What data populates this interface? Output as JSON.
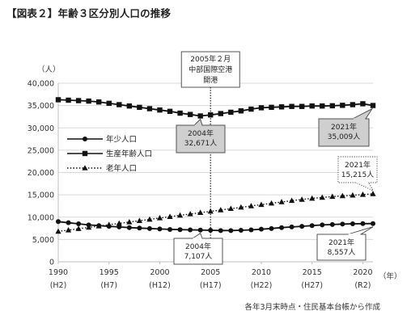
{
  "figure": {
    "title": "【図表２】年齢３区分別人口の推移",
    "source": "各年3月末時点・住民基本台帳から作成",
    "y_unit": "（人）",
    "x_unit": "（年）"
  },
  "chart_data": {
    "type": "line",
    "title": "【図表２】年齢３区分別人口の推移",
    "xlabel": "（年）",
    "ylabel": "（人）",
    "x": [
      1990,
      1991,
      1992,
      1993,
      1994,
      1995,
      1996,
      1997,
      1998,
      1999,
      2000,
      2001,
      2002,
      2003,
      2004,
      2005,
      2006,
      2007,
      2008,
      2009,
      2010,
      2011,
      2012,
      2013,
      2014,
      2015,
      2016,
      2017,
      2018,
      2019,
      2020,
      2021
    ],
    "xlim": [
      1990,
      2021
    ],
    "ylim": [
      0,
      40000
    ],
    "y_ticks": [
      "0",
      "5,000",
      "10,000",
      "15,000",
      "20,000",
      "25,000",
      "30,000",
      "35,000",
      "40,000"
    ],
    "y_tick_values": [
      0,
      5000,
      10000,
      15000,
      20000,
      25000,
      30000,
      35000,
      40000
    ],
    "x_ticks": [
      {
        "year": 1990,
        "label": "1990",
        "era": "(H2)"
      },
      {
        "year": 1995,
        "label": "1995",
        "era": "(H7)"
      },
      {
        "year": 2000,
        "label": "2000",
        "era": "(H12)"
      },
      {
        "year": 2005,
        "label": "2005",
        "era": "(H17)"
      },
      {
        "year": 2010,
        "label": "2010",
        "era": "(H22)"
      },
      {
        "year": 2015,
        "label": "2015",
        "era": "(H27)"
      },
      {
        "year": 2020,
        "label": "2020",
        "era": "(R2)"
      }
    ],
    "legend_position": "left",
    "grid": "horizontal",
    "series": [
      {
        "name": "年少人口",
        "marker": "circle",
        "line": "solid",
        "color": "#111111",
        "values": [
          9000,
          8750,
          8500,
          8250,
          8100,
          7950,
          7800,
          7650,
          7550,
          7450,
          7350,
          7250,
          7200,
          7150,
          7107,
          7050,
          7000,
          7000,
          7050,
          7150,
          7300,
          7450,
          7650,
          7800,
          7950,
          8100,
          8250,
          8350,
          8450,
          8500,
          8550,
          8557
        ]
      },
      {
        "name": "生産年齢人口",
        "marker": "square",
        "line": "solid",
        "color": "#111111",
        "values": [
          36300,
          36200,
          36100,
          36000,
          35800,
          35500,
          35200,
          34900,
          34600,
          34300,
          34000,
          33700,
          33300,
          33000,
          32671,
          32900,
          33200,
          33500,
          33800,
          34200,
          34500,
          34600,
          34700,
          34800,
          34800,
          34900,
          34900,
          34950,
          35050,
          35200,
          35400,
          35009
        ]
      },
      {
        "name": "老年人口",
        "marker": "triangle",
        "line": "dotted",
        "color": "#111111",
        "values": [
          6800,
          7100,
          7400,
          7700,
          8000,
          8300,
          8600,
          8900,
          9200,
          9500,
          9800,
          10100,
          10400,
          10700,
          11000,
          11300,
          11600,
          11900,
          12200,
          12500,
          12800,
          13100,
          13400,
          13700,
          13950,
          14200,
          14400,
          14600,
          14750,
          14900,
          15050,
          15215
        ]
      }
    ],
    "annotations": [
      {
        "lines": [
          "2005年２月",
          "中部国際空港",
          "開港"
        ],
        "target_year": 2005,
        "style": "dotted-vertical-line"
      },
      {
        "lines": [
          "2004年",
          "32,671人"
        ],
        "target_year": 2004,
        "series": "生産年齢人口",
        "style": "gray"
      },
      {
        "lines": [
          "2004年",
          "7,107人"
        ],
        "target_year": 2004,
        "series": "年少人口",
        "style": "white"
      },
      {
        "lines": [
          "2021年",
          "35,009人"
        ],
        "target_year": 2021,
        "series": "生産年齢人口",
        "style": "gray"
      },
      {
        "lines": [
          "2021年",
          "15,215人"
        ],
        "target_year": 2021,
        "series": "老年人口",
        "style": "dotted"
      },
      {
        "lines": [
          "2021年",
          "8,557人"
        ],
        "target_year": 2021,
        "series": "年少人口",
        "style": "white"
      }
    ]
  }
}
